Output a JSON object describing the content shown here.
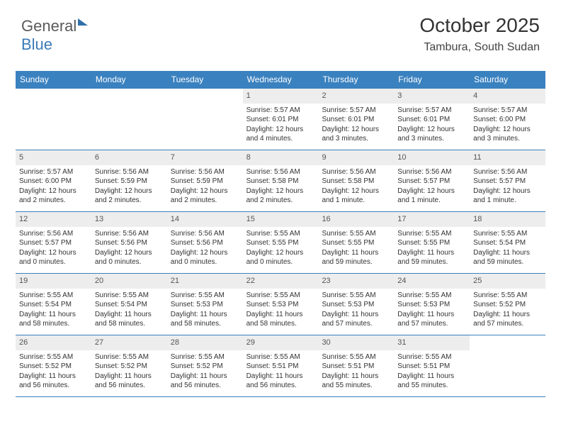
{
  "logo": {
    "part1": "General",
    "part2": "Blue"
  },
  "title": "October 2025",
  "location": "Tambura, South Sudan",
  "colors": {
    "header_bg": "#3a81bf",
    "header_text": "#ffffff",
    "daynum_bg": "#ededed",
    "grid_line": "#3a81bf",
    "text": "#333333"
  },
  "fonts": {
    "title_size": 28,
    "location_size": 16,
    "dow_size": 12,
    "cell_size": 10
  },
  "days_of_week": [
    "Sunday",
    "Monday",
    "Tuesday",
    "Wednesday",
    "Thursday",
    "Friday",
    "Saturday"
  ],
  "weeks": [
    [
      {
        "n": "",
        "sr": "",
        "ss": "",
        "dl": ""
      },
      {
        "n": "",
        "sr": "",
        "ss": "",
        "dl": ""
      },
      {
        "n": "",
        "sr": "",
        "ss": "",
        "dl": ""
      },
      {
        "n": "1",
        "sr": "Sunrise: 5:57 AM",
        "ss": "Sunset: 6:01 PM",
        "dl": "Daylight: 12 hours and 4 minutes."
      },
      {
        "n": "2",
        "sr": "Sunrise: 5:57 AM",
        "ss": "Sunset: 6:01 PM",
        "dl": "Daylight: 12 hours and 3 minutes."
      },
      {
        "n": "3",
        "sr": "Sunrise: 5:57 AM",
        "ss": "Sunset: 6:01 PM",
        "dl": "Daylight: 12 hours and 3 minutes."
      },
      {
        "n": "4",
        "sr": "Sunrise: 5:57 AM",
        "ss": "Sunset: 6:00 PM",
        "dl": "Daylight: 12 hours and 3 minutes."
      }
    ],
    [
      {
        "n": "5",
        "sr": "Sunrise: 5:57 AM",
        "ss": "Sunset: 6:00 PM",
        "dl": "Daylight: 12 hours and 2 minutes."
      },
      {
        "n": "6",
        "sr": "Sunrise: 5:56 AM",
        "ss": "Sunset: 5:59 PM",
        "dl": "Daylight: 12 hours and 2 minutes."
      },
      {
        "n": "7",
        "sr": "Sunrise: 5:56 AM",
        "ss": "Sunset: 5:59 PM",
        "dl": "Daylight: 12 hours and 2 minutes."
      },
      {
        "n": "8",
        "sr": "Sunrise: 5:56 AM",
        "ss": "Sunset: 5:58 PM",
        "dl": "Daylight: 12 hours and 2 minutes."
      },
      {
        "n": "9",
        "sr": "Sunrise: 5:56 AM",
        "ss": "Sunset: 5:58 PM",
        "dl": "Daylight: 12 hours and 1 minute."
      },
      {
        "n": "10",
        "sr": "Sunrise: 5:56 AM",
        "ss": "Sunset: 5:57 PM",
        "dl": "Daylight: 12 hours and 1 minute."
      },
      {
        "n": "11",
        "sr": "Sunrise: 5:56 AM",
        "ss": "Sunset: 5:57 PM",
        "dl": "Daylight: 12 hours and 1 minute."
      }
    ],
    [
      {
        "n": "12",
        "sr": "Sunrise: 5:56 AM",
        "ss": "Sunset: 5:57 PM",
        "dl": "Daylight: 12 hours and 0 minutes."
      },
      {
        "n": "13",
        "sr": "Sunrise: 5:56 AM",
        "ss": "Sunset: 5:56 PM",
        "dl": "Daylight: 12 hours and 0 minutes."
      },
      {
        "n": "14",
        "sr": "Sunrise: 5:56 AM",
        "ss": "Sunset: 5:56 PM",
        "dl": "Daylight: 12 hours and 0 minutes."
      },
      {
        "n": "15",
        "sr": "Sunrise: 5:55 AM",
        "ss": "Sunset: 5:55 PM",
        "dl": "Daylight: 12 hours and 0 minutes."
      },
      {
        "n": "16",
        "sr": "Sunrise: 5:55 AM",
        "ss": "Sunset: 5:55 PM",
        "dl": "Daylight: 11 hours and 59 minutes."
      },
      {
        "n": "17",
        "sr": "Sunrise: 5:55 AM",
        "ss": "Sunset: 5:55 PM",
        "dl": "Daylight: 11 hours and 59 minutes."
      },
      {
        "n": "18",
        "sr": "Sunrise: 5:55 AM",
        "ss": "Sunset: 5:54 PM",
        "dl": "Daylight: 11 hours and 59 minutes."
      }
    ],
    [
      {
        "n": "19",
        "sr": "Sunrise: 5:55 AM",
        "ss": "Sunset: 5:54 PM",
        "dl": "Daylight: 11 hours and 58 minutes."
      },
      {
        "n": "20",
        "sr": "Sunrise: 5:55 AM",
        "ss": "Sunset: 5:54 PM",
        "dl": "Daylight: 11 hours and 58 minutes."
      },
      {
        "n": "21",
        "sr": "Sunrise: 5:55 AM",
        "ss": "Sunset: 5:53 PM",
        "dl": "Daylight: 11 hours and 58 minutes."
      },
      {
        "n": "22",
        "sr": "Sunrise: 5:55 AM",
        "ss": "Sunset: 5:53 PM",
        "dl": "Daylight: 11 hours and 58 minutes."
      },
      {
        "n": "23",
        "sr": "Sunrise: 5:55 AM",
        "ss": "Sunset: 5:53 PM",
        "dl": "Daylight: 11 hours and 57 minutes."
      },
      {
        "n": "24",
        "sr": "Sunrise: 5:55 AM",
        "ss": "Sunset: 5:53 PM",
        "dl": "Daylight: 11 hours and 57 minutes."
      },
      {
        "n": "25",
        "sr": "Sunrise: 5:55 AM",
        "ss": "Sunset: 5:52 PM",
        "dl": "Daylight: 11 hours and 57 minutes."
      }
    ],
    [
      {
        "n": "26",
        "sr": "Sunrise: 5:55 AM",
        "ss": "Sunset: 5:52 PM",
        "dl": "Daylight: 11 hours and 56 minutes."
      },
      {
        "n": "27",
        "sr": "Sunrise: 5:55 AM",
        "ss": "Sunset: 5:52 PM",
        "dl": "Daylight: 11 hours and 56 minutes."
      },
      {
        "n": "28",
        "sr": "Sunrise: 5:55 AM",
        "ss": "Sunset: 5:52 PM",
        "dl": "Daylight: 11 hours and 56 minutes."
      },
      {
        "n": "29",
        "sr": "Sunrise: 5:55 AM",
        "ss": "Sunset: 5:51 PM",
        "dl": "Daylight: 11 hours and 56 minutes."
      },
      {
        "n": "30",
        "sr": "Sunrise: 5:55 AM",
        "ss": "Sunset: 5:51 PM",
        "dl": "Daylight: 11 hours and 55 minutes."
      },
      {
        "n": "31",
        "sr": "Sunrise: 5:55 AM",
        "ss": "Sunset: 5:51 PM",
        "dl": "Daylight: 11 hours and 55 minutes."
      },
      {
        "n": "",
        "sr": "",
        "ss": "",
        "dl": ""
      }
    ]
  ]
}
